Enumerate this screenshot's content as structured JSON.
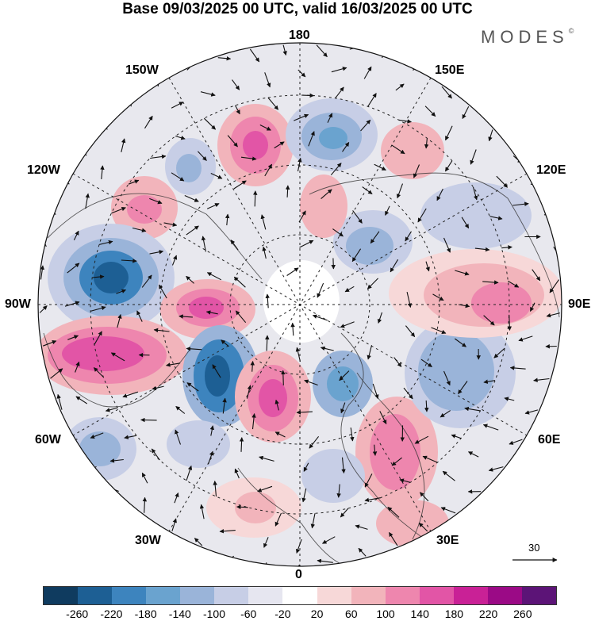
{
  "title": "Base 09/03/2025 00 UTC, valid 16/03/2025 00 UTC",
  "brand": "MODES",
  "brand_mark": "©",
  "longitude_labels": {
    "top": "180",
    "bottom": "0",
    "left": "90W",
    "right": "90E",
    "upper_left_1": "150W",
    "upper_left_2": "120W",
    "upper_right_1": "150E",
    "upper_right_2": "120E",
    "lower_left_1": "60W",
    "lower_left_2": "30W",
    "lower_right_1": "60E",
    "lower_right_2": "30E"
  },
  "vector_scale_label": "30",
  "colorbar": {
    "colors": [
      "#0f3b5f",
      "#1d5f94",
      "#3d84be",
      "#6aa3cf",
      "#9ab4d9",
      "#c7cee6",
      "#e6e6f0",
      "#ffffff",
      "#f7d8d8",
      "#f2b4bb",
      "#ee86ae",
      "#e255a6",
      "#c92196",
      "#9b0a86",
      "#5c1477"
    ],
    "ticks": [
      "-260",
      "-220",
      "-180",
      "-140",
      "-100",
      "-60",
      "-20",
      "20",
      "60",
      "100",
      "140",
      "180",
      "220",
      "260"
    ]
  }
}
